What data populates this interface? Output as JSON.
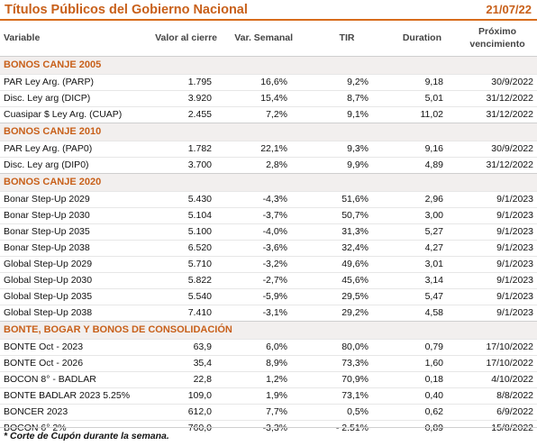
{
  "header": {
    "title": "Títulos Públicos del Gobierno Nacional",
    "date": "21/07/22"
  },
  "columns": [
    "Variable",
    "Valor al cierre",
    "Var. Semanal",
    "TIR",
    "Duration",
    "Próximo vencimiento"
  ],
  "sections": [
    {
      "name": "BONOS CANJE 2005",
      "rows": [
        [
          "PAR Ley Arg. (PARP)",
          "1.795",
          "16,6%",
          "9,2%",
          "9,18",
          "30/9/2022"
        ],
        [
          "Disc. Ley arg (DICP)",
          "3.920",
          "15,4%",
          "8,7%",
          "5,01",
          "31/12/2022"
        ],
        [
          "Cuasipar $ Ley Arg. (CUAP)",
          "2.455",
          "7,2%",
          "9,1%",
          "11,02",
          "31/12/2022"
        ]
      ]
    },
    {
      "name": "BONOS CANJE 2010",
      "rows": [
        [
          "PAR Ley Arg. (PAP0)",
          "1.782",
          "22,1%",
          "9,3%",
          "9,16",
          "30/9/2022"
        ],
        [
          "Disc. Ley arg (DIP0)",
          "3.700",
          "2,8%",
          "9,9%",
          "4,89",
          "31/12/2022"
        ]
      ]
    },
    {
      "name": "BONOS CANJE 2020",
      "rows": [
        [
          "Bonar Step-Up 2029",
          "5.430",
          "-4,3%",
          "51,6%",
          "2,96",
          "9/1/2023"
        ],
        [
          "Bonar Step-Up 2030",
          "5.104",
          "-3,7%",
          "50,7%",
          "3,00",
          "9/1/2023"
        ],
        [
          "Bonar Step-Up 2035",
          "5.100",
          "-4,0%",
          "31,3%",
          "5,27",
          "9/1/2023"
        ],
        [
          "Bonar Step-Up 2038",
          "6.520",
          "-3,6%",
          "32,4%",
          "4,27",
          "9/1/2023"
        ],
        [
          "Global Step-Up 2029",
          "5.710",
          "-3,2%",
          "49,6%",
          "3,01",
          "9/1/2023"
        ],
        [
          "Global Step-Up 2030",
          "5.822",
          "-2,7%",
          "45,6%",
          "3,14",
          "9/1/2023"
        ],
        [
          "Global Step-Up 2035",
          "5.540",
          "-5,9%",
          "29,5%",
          "5,47",
          "9/1/2023"
        ],
        [
          "Global Step-Up 2038",
          "7.410",
          "-3,1%",
          "29,2%",
          "4,58",
          "9/1/2023"
        ]
      ]
    },
    {
      "name": "BONTE, BOGAR Y BONOS DE CONSOLIDACIÓN",
      "rows": [
        [
          "BONTE Oct - 2023",
          "63,9",
          "6,0%",
          "80,0%",
          "0,79",
          "17/10/2022"
        ],
        [
          "BONTE Oct - 2026",
          "35,4",
          "8,9%",
          "73,3%",
          "1,60",
          "17/10/2022"
        ],
        [
          "BOCON 8° - BADLAR",
          "22,8",
          "1,2%",
          "70,9%",
          "0,18",
          "4/10/2022"
        ],
        [
          "BONTE BADLAR 2023 5.25%",
          "109,0",
          "1,9%",
          "73,1%",
          "0,40",
          "8/8/2022"
        ],
        [
          "BONCER 2023",
          "612,0",
          "7,7%",
          "0,5%",
          "0,62",
          "6/9/2022"
        ],
        [
          "BOCON 6° 2%",
          "760,0",
          "-3,3%",
          "-  2.51%",
          "0,89",
          "15/8/2022"
        ]
      ]
    }
  ],
  "footnote": "* Corte de Cupón durante la semana."
}
